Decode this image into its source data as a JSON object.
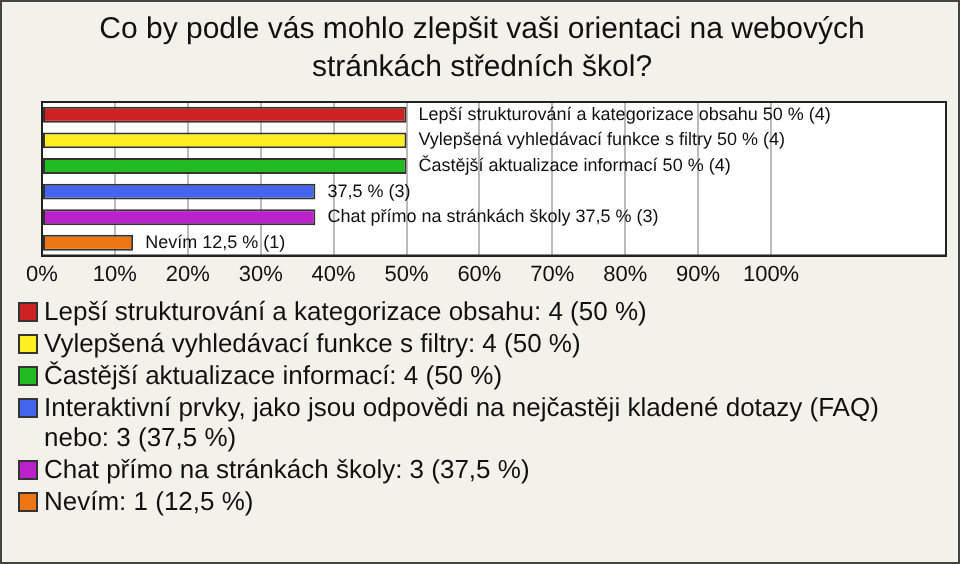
{
  "chart_data": {
    "type": "bar",
    "orientation": "horizontal",
    "title": "Co by podle vás mohlo zlepšit vaši orientaci na webových stránkách středních škol?",
    "categories": [
      null,
      null,
      null,
      null,
      null,
      null
    ],
    "series": [
      {
        "name": "Lepší strukturování a kategorizace obsahu: 4 (50 %)",
        "color": "#cc2222",
        "values": [
          50,
          null,
          null,
          null,
          null,
          null
        ],
        "value_labels": [
          "Lepší strukturování a kategorizace obsahu 50 % (4)",
          null,
          null,
          null,
          null,
          null
        ]
      },
      {
        "name": "Vylepšená vyhledávací funkce s filtry: 4 (50 %)",
        "color": "#ffee22",
        "values": [
          null,
          50,
          null,
          null,
          null,
          null
        ],
        "value_labels": [
          null,
          "Vylepšená vyhledávací funkce s filtry 50 % (4)",
          null,
          null,
          null,
          null
        ]
      },
      {
        "name": "Častější aktualizace informací: 4 (50 %)",
        "color": "#22bb22",
        "values": [
          null,
          null,
          50,
          null,
          null,
          null
        ],
        "value_labels": [
          null,
          null,
          "Častější aktualizace informací 50 % (4)",
          null,
          null,
          null
        ]
      },
      {
        "name": "Interaktivní prvky, jako jsou odpovědi na nejčastěji kladené dotazy (FAQ) nebo: 3 (37,5 %)",
        "color": "#4466ee",
        "values": [
          null,
          null,
          null,
          37.5,
          null,
          null
        ],
        "value_labels": [
          null,
          null,
          null,
          "37,5 % (3)",
          null,
          null
        ]
      },
      {
        "name": "Chat přímo na stránkách školy: 3 (37,5 %)",
        "color": "#bb22cc",
        "values": [
          null,
          null,
          null,
          null,
          37.5,
          null
        ],
        "value_labels": [
          null,
          null,
          null,
          null,
          "Chat přímo na stránkách školy 37,5 % (3)",
          null
        ]
      },
      {
        "name": "Nevím: 1 (12,5 %)",
        "color": "#ee7711",
        "values": [
          null,
          null,
          null,
          null,
          null,
          12.5
        ],
        "value_labels": [
          null,
          null,
          null,
          null,
          null,
          "Nevím 12,5 % (1)"
        ]
      }
    ],
    "xlim": [
      0,
      124
    ],
    "xticks": [
      {
        "value": 0,
        "label": "0%"
      },
      {
        "value": 10,
        "label": "10%"
      },
      {
        "value": 20,
        "label": "20%"
      },
      {
        "value": 30,
        "label": "30%"
      },
      {
        "value": 40,
        "label": "40%"
      },
      {
        "value": 50,
        "label": "50%"
      },
      {
        "value": 60,
        "label": "60%"
      },
      {
        "value": 70,
        "label": "70%"
      },
      {
        "value": 80,
        "label": "80%"
      },
      {
        "value": 90,
        "label": "90%"
      },
      {
        "value": 100,
        "label": "100%"
      }
    ],
    "grid": "x",
    "legend": "bottom",
    "tick_labels": "x"
  }
}
